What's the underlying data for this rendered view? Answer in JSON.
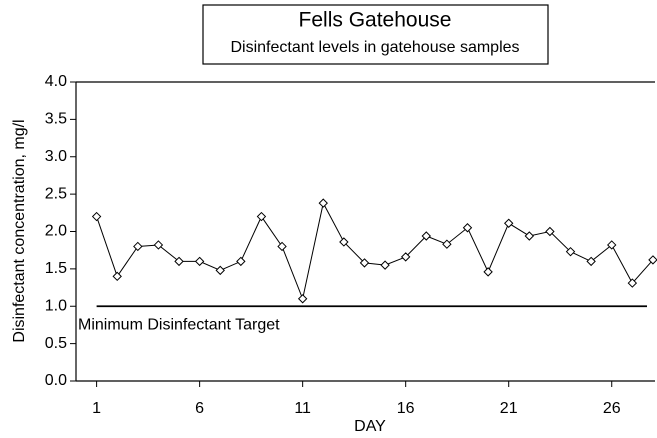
{
  "chart_data": {
    "type": "line",
    "title": "Fells Gatehouse",
    "subtitle": "Disinfectant levels in gatehouse samples",
    "x_label": "DAY",
    "y_label": "Disinfectant concentration, mg/l",
    "x": [
      1,
      2,
      3,
      4,
      5,
      6,
      7,
      8,
      9,
      10,
      11,
      12,
      13,
      14,
      15,
      16,
      17,
      18,
      19,
      20,
      21,
      22,
      23,
      24,
      25,
      26,
      27,
      28
    ],
    "values": [
      2.2,
      1.4,
      1.8,
      1.82,
      1.6,
      1.6,
      1.48,
      1.6,
      2.2,
      1.8,
      1.1,
      2.38,
      1.86,
      1.58,
      1.55,
      1.66,
      1.94,
      1.83,
      2.05,
      1.46,
      2.11,
      1.94,
      2.0,
      1.73,
      1.6,
      1.82,
      1.31,
      1.62
    ],
    "color": "#000000",
    "xlim": [
      0,
      28.1
    ],
    "ylim": [
      0,
      4
    ],
    "xticks": [
      1,
      6,
      11,
      16,
      21,
      26
    ],
    "yticks": [
      {
        "value": 0,
        "label": "0.0"
      },
      0.5,
      {
        "value": 1,
        "label": "1.0"
      },
      1.5,
      {
        "value": 2,
        "label": "2.0"
      },
      2.5,
      {
        "value": 3,
        "label": "3.0"
      },
      3.5,
      {
        "value": 4,
        "label": "4.0"
      }
    ],
    "reference_line": {
      "value": 1,
      "label": "Minimum Disinfectant Target"
    }
  }
}
